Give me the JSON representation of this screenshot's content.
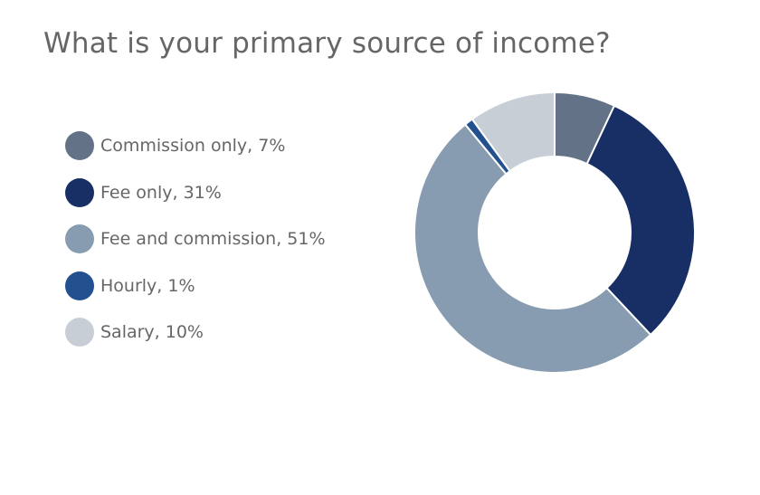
{
  "chart_data": {
    "type": "pie",
    "variant": "donut",
    "title": "What is your primary source of income?",
    "legend_position": "left",
    "slices": [
      {
        "label": "Commission only, 7%",
        "name": "Commission only",
        "value": 7,
        "color": "#637287"
      },
      {
        "label": "Fee only, 31%",
        "name": "Fee only",
        "value": 31,
        "color": "#172f64"
      },
      {
        "label": "Fee and commission, 51%",
        "name": "Fee and commission",
        "value": 51,
        "color": "#879cb0"
      },
      {
        "label": "Hourly, 1%",
        "name": "Hourly",
        "value": 1,
        "color": "#23518f"
      },
      {
        "label": "Salary, 10%",
        "name": "Salary",
        "value": 10,
        "color": "#c7ced5"
      }
    ]
  }
}
